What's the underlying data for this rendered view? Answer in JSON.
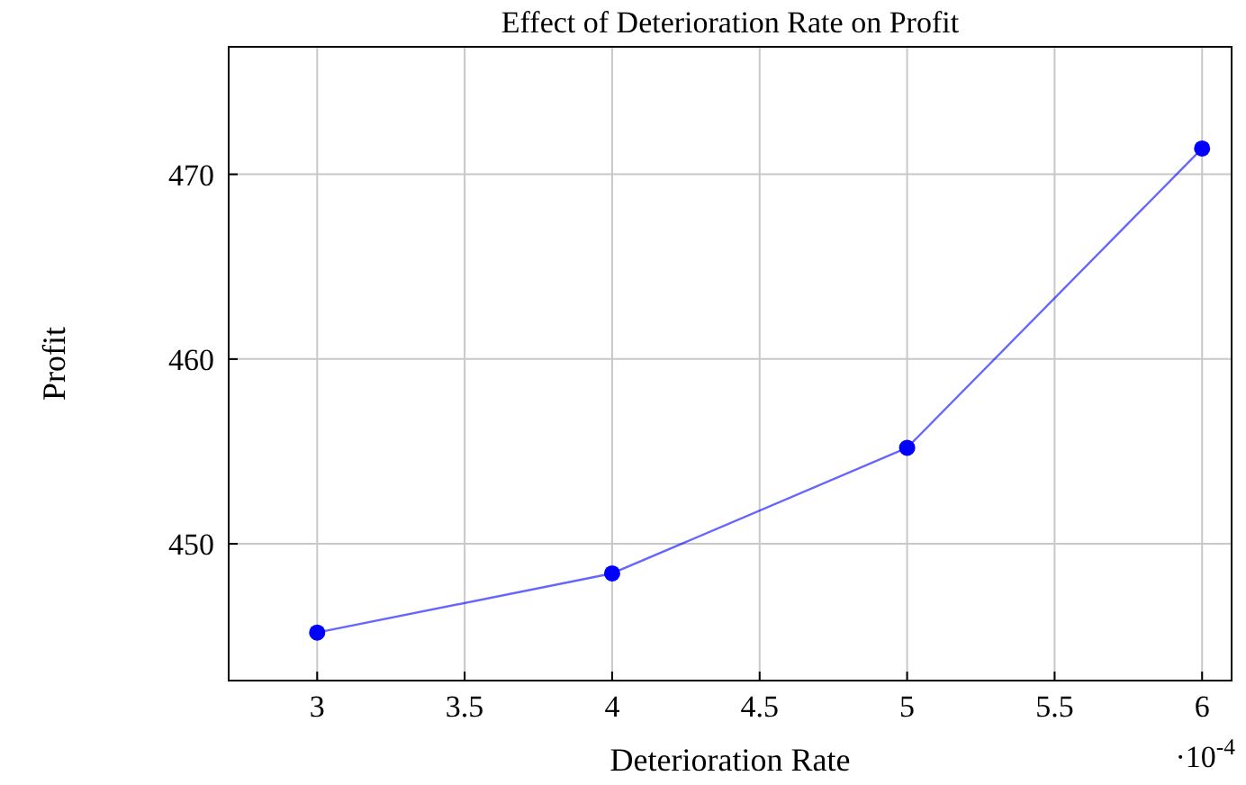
{
  "chart_data": {
    "type": "line",
    "title": "Effect of Deterioration Rate on Profit",
    "xlabel": "Deterioration Rate",
    "ylabel": "Profit",
    "x": [
      3,
      4,
      5,
      6
    ],
    "series": [
      {
        "color": "#0000ff",
        "values": [
          445.2,
          448.4,
          455.2,
          471.4
        ]
      }
    ],
    "xlim": [
      2.7,
      6.1
    ],
    "ylim": [
      442.6,
      476.9
    ],
    "xticks": [
      3,
      3.5,
      4,
      4.5,
      5,
      5.5,
      6
    ],
    "yticks": [
      450,
      460,
      470
    ],
    "annotations": [
      "·10$^{-4}$"
    ],
    "grid": true,
    "marker": "circle",
    "line_style": "solid"
  }
}
